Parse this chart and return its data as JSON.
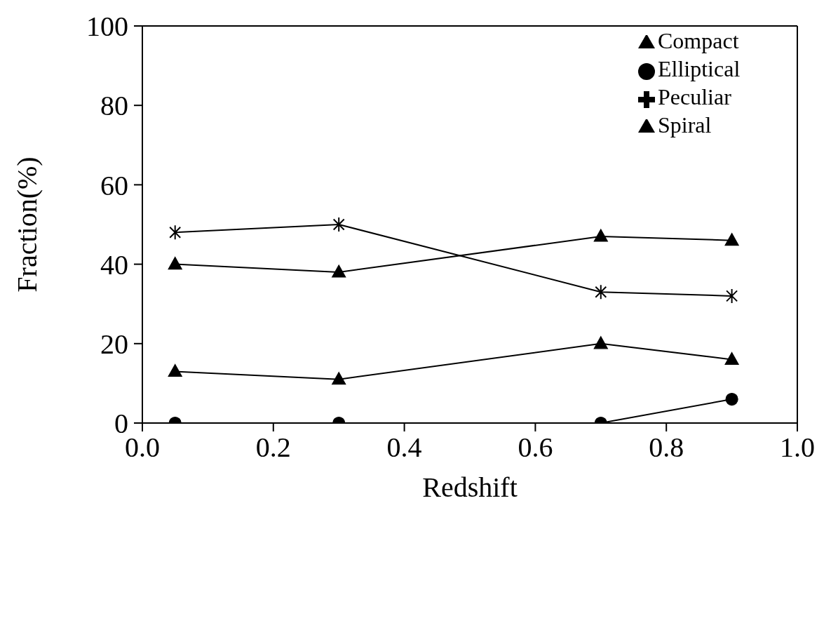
{
  "chart_data": {
    "type": "line",
    "xlabel": "Redshift",
    "ylabel": "Fraction(%)",
    "x": [
      0.05,
      0.3,
      0.7,
      0.9
    ],
    "series": [
      {
        "name": "Spiral",
        "color": "#000000",
        "marker": "triangle",
        "values": [
          40,
          38,
          47,
          46
        ]
      },
      {
        "name": "Peculiar",
        "color": "#000000",
        "marker": "cross",
        "values": [
          48,
          50,
          33,
          32
        ]
      },
      {
        "name": "Elliptical",
        "color": "#000000",
        "marker": "circle",
        "values": [
          0,
          0,
          0,
          6
        ]
      },
      {
        "name": "Compact",
        "color": "#000000",
        "marker": "triangle",
        "values": [
          13,
          11,
          20,
          16
        ]
      }
    ],
    "xlim": [
      0,
      1
    ],
    "xticks": [
      {
        "value": 0,
        "label": "0.0"
      },
      {
        "value": 0.2,
        "label": "0.2"
      },
      {
        "value": 0.4,
        "label": "0.4"
      },
      {
        "value": 0.6,
        "label": "0.6"
      },
      {
        "value": 0.8,
        "label": "0.8"
      },
      {
        "value": 1,
        "label": "1.0"
      }
    ],
    "ylim": [
      0,
      100
    ],
    "yticks": [
      0,
      20,
      40,
      60,
      80,
      100
    ],
    "grid": false,
    "legend": "top right",
    "line_style": "solid"
  }
}
